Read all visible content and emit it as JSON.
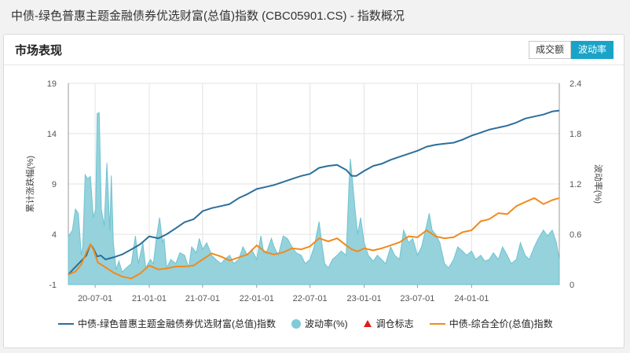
{
  "page": {
    "title": "中债-绿色普惠主题金融债券优选财富(总值)指数 (CBC05901.CS) - 指数概况"
  },
  "panel": {
    "title": "市场表现"
  },
  "tabs": [
    {
      "label": "成交额",
      "active": false
    },
    {
      "label": "波动率",
      "active": true
    }
  ],
  "colors": {
    "wealth_index": "#2b6f9a",
    "volatility_fill": "#8fd0da",
    "volatility_dot": "#7fcbd8",
    "rebalance_marker": "#e21b1b",
    "composite_index": "#f28a1c",
    "active_tab": "#1aa3c7"
  },
  "legend": [
    {
      "label": "中债-绿色普惠主题金融债券优选财富(总值)指数",
      "swatch": "line",
      "color": "#2b6f9a"
    },
    {
      "label": "波动率(%)",
      "swatch": "dot",
      "color": "#7fcbd8"
    },
    {
      "label": "调仓标志",
      "swatch": "triangle",
      "color": "#e21b1b"
    },
    {
      "label": "中债-综合全价(总值)指数",
      "swatch": "line",
      "color": "#f28a1c"
    }
  ],
  "chart_data": {
    "type": "line",
    "y_left": {
      "label": "累计涨跌幅(%)",
      "ticks": [
        "19",
        "14",
        "9",
        "4",
        "-1"
      ],
      "range": [
        -1,
        19
      ]
    },
    "y_right": {
      "label": "波动率(%)",
      "ticks": [
        "2.4",
        "1.8",
        "1.2",
        "0.6",
        "0"
      ],
      "range": [
        0,
        2.4
      ]
    },
    "x_axis": {
      "range": [
        "2020-04-01",
        "2024-10-25"
      ],
      "ticks": [
        {
          "date": "2020-07-01",
          "label": "20-07-01"
        },
        {
          "date": "2021-01-01",
          "label": "21-01-01"
        },
        {
          "date": "2021-07-01",
          "label": "21-07-01"
        },
        {
          "date": "2022-01-01",
          "label": "22-01-01"
        },
        {
          "date": "2022-07-01",
          "label": "22-07-01"
        },
        {
          "date": "2023-01-01",
          "label": "23-01-01"
        },
        {
          "date": "2023-07-01",
          "label": "23-07-01"
        },
        {
          "date": "2024-01-01",
          "label": "24-01-01"
        }
      ]
    },
    "grid": true,
    "legend_position": "bottom",
    "series": [
      {
        "name": "中债-绿色普惠主题金融债券优选财富(总值)指数",
        "axis": "left",
        "points": [
          [
            "2020-04-01",
            0.0
          ],
          [
            "2020-04-20",
            0.6
          ],
          [
            "2020-05-10",
            1.2
          ],
          [
            "2020-06-01",
            1.9
          ],
          [
            "2020-06-15",
            3.0
          ],
          [
            "2020-06-25",
            2.6
          ],
          [
            "2020-07-08",
            1.8
          ],
          [
            "2020-07-20",
            1.9
          ],
          [
            "2020-08-05",
            1.5
          ],
          [
            "2020-09-01",
            1.7
          ],
          [
            "2020-10-01",
            2.0
          ],
          [
            "2020-11-01",
            2.5
          ],
          [
            "2020-12-01",
            3.0
          ],
          [
            "2021-01-01",
            3.8
          ],
          [
            "2021-02-01",
            3.6
          ],
          [
            "2021-03-01",
            4.0
          ],
          [
            "2021-04-01",
            4.6
          ],
          [
            "2021-05-01",
            5.2
          ],
          [
            "2021-06-01",
            5.5
          ],
          [
            "2021-07-01",
            6.3
          ],
          [
            "2021-08-01",
            6.6
          ],
          [
            "2021-09-01",
            6.8
          ],
          [
            "2021-10-01",
            7.0
          ],
          [
            "2021-11-01",
            7.6
          ],
          [
            "2021-12-01",
            8.0
          ],
          [
            "2022-01-01",
            8.5
          ],
          [
            "2022-02-01",
            8.7
          ],
          [
            "2022-03-01",
            8.9
          ],
          [
            "2022-04-01",
            9.2
          ],
          [
            "2022-05-01",
            9.5
          ],
          [
            "2022-06-01",
            9.8
          ],
          [
            "2022-07-01",
            10.0
          ],
          [
            "2022-08-01",
            10.6
          ],
          [
            "2022-09-01",
            10.8
          ],
          [
            "2022-10-01",
            10.9
          ],
          [
            "2022-11-01",
            10.4
          ],
          [
            "2022-11-20",
            9.8
          ],
          [
            "2022-12-05",
            9.8
          ],
          [
            "2023-01-01",
            10.3
          ],
          [
            "2023-02-01",
            10.8
          ],
          [
            "2023-03-01",
            11.0
          ],
          [
            "2023-04-01",
            11.4
          ],
          [
            "2023-05-01",
            11.7
          ],
          [
            "2023-06-01",
            12.0
          ],
          [
            "2023-07-01",
            12.3
          ],
          [
            "2023-08-01",
            12.7
          ],
          [
            "2023-09-01",
            12.9
          ],
          [
            "2023-10-01",
            13.0
          ],
          [
            "2023-11-01",
            13.1
          ],
          [
            "2023-12-01",
            13.4
          ],
          [
            "2024-01-01",
            13.8
          ],
          [
            "2024-02-01",
            14.1
          ],
          [
            "2024-03-01",
            14.4
          ],
          [
            "2024-04-01",
            14.6
          ],
          [
            "2024-05-01",
            14.8
          ],
          [
            "2024-06-01",
            15.1
          ],
          [
            "2024-07-01",
            15.5
          ],
          [
            "2024-08-01",
            15.7
          ],
          [
            "2024-09-01",
            15.9
          ],
          [
            "2024-10-01",
            16.2
          ],
          [
            "2024-10-25",
            16.3
          ]
        ]
      },
      {
        "name": "中债-综合全价(总值)指数",
        "axis": "left",
        "points": [
          [
            "2020-04-01",
            0.0
          ],
          [
            "2020-04-25",
            0.3
          ],
          [
            "2020-05-15",
            1.0
          ],
          [
            "2020-06-01",
            2.2
          ],
          [
            "2020-06-15",
            3.0
          ],
          [
            "2020-06-25",
            2.5
          ],
          [
            "2020-07-10",
            1.2
          ],
          [
            "2020-08-01",
            0.8
          ],
          [
            "2020-09-01",
            0.2
          ],
          [
            "2020-10-01",
            -0.2
          ],
          [
            "2020-11-01",
            -0.4
          ],
          [
            "2020-12-01",
            0.1
          ],
          [
            "2021-01-01",
            0.9
          ],
          [
            "2021-02-01",
            0.5
          ],
          [
            "2021-03-01",
            0.6
          ],
          [
            "2021-04-01",
            0.8
          ],
          [
            "2021-05-01",
            0.8
          ],
          [
            "2021-06-01",
            0.9
          ],
          [
            "2021-07-01",
            1.5
          ],
          [
            "2021-08-01",
            2.1
          ],
          [
            "2021-09-01",
            1.8
          ],
          [
            "2021-10-01",
            1.4
          ],
          [
            "2021-11-01",
            1.7
          ],
          [
            "2021-12-01",
            2.0
          ],
          [
            "2022-01-01",
            2.9
          ],
          [
            "2022-02-01",
            2.2
          ],
          [
            "2022-03-01",
            2.0
          ],
          [
            "2022-04-01",
            2.2
          ],
          [
            "2022-05-01",
            2.6
          ],
          [
            "2022-06-01",
            2.5
          ],
          [
            "2022-07-01",
            2.8
          ],
          [
            "2022-08-01",
            3.6
          ],
          [
            "2022-09-01",
            3.3
          ],
          [
            "2022-10-01",
            3.6
          ],
          [
            "2022-11-01",
            2.9
          ],
          [
            "2022-11-20",
            2.5
          ],
          [
            "2022-12-10",
            2.3
          ],
          [
            "2023-01-01",
            2.6
          ],
          [
            "2023-02-01",
            2.4
          ],
          [
            "2023-03-01",
            2.6
          ],
          [
            "2023-04-01",
            2.9
          ],
          [
            "2023-05-01",
            3.2
          ],
          [
            "2023-06-01",
            3.8
          ],
          [
            "2023-07-01",
            3.7
          ],
          [
            "2023-08-01",
            4.4
          ],
          [
            "2023-09-01",
            3.8
          ],
          [
            "2023-10-01",
            3.6
          ],
          [
            "2023-11-01",
            3.7
          ],
          [
            "2023-12-01",
            4.2
          ],
          [
            "2024-01-01",
            4.4
          ],
          [
            "2024-02-01",
            5.3
          ],
          [
            "2024-03-01",
            5.5
          ],
          [
            "2024-04-01",
            6.1
          ],
          [
            "2024-05-01",
            6.0
          ],
          [
            "2024-06-01",
            6.8
          ],
          [
            "2024-07-01",
            7.2
          ],
          [
            "2024-08-01",
            7.6
          ],
          [
            "2024-09-01",
            7.0
          ],
          [
            "2024-10-01",
            7.4
          ],
          [
            "2024-10-25",
            7.6
          ]
        ]
      },
      {
        "name": "波动率(%)",
        "axis": "right",
        "type": "area",
        "points": [
          [
            "2020-04-01",
            0.57
          ],
          [
            "2020-04-15",
            0.65
          ],
          [
            "2020-04-25",
            0.9
          ],
          [
            "2020-05-05",
            0.85
          ],
          [
            "2020-05-15",
            0.35
          ],
          [
            "2020-05-20",
            0.45
          ],
          [
            "2020-05-28",
            1.31
          ],
          [
            "2020-06-05",
            1.26
          ],
          [
            "2020-06-15",
            1.29
          ],
          [
            "2020-06-25",
            0.8
          ],
          [
            "2020-07-03",
            0.9
          ],
          [
            "2020-07-08",
            2.04
          ],
          [
            "2020-07-15",
            2.05
          ],
          [
            "2020-07-22",
            0.9
          ],
          [
            "2020-08-01",
            0.7
          ],
          [
            "2020-08-10",
            1.45
          ],
          [
            "2020-08-20",
            0.65
          ],
          [
            "2020-08-25",
            1.3
          ],
          [
            "2020-09-01",
            0.5
          ],
          [
            "2020-09-10",
            0.18
          ],
          [
            "2020-09-20",
            0.28
          ],
          [
            "2020-10-01",
            0.15
          ],
          [
            "2020-10-15",
            0.2
          ],
          [
            "2020-11-01",
            0.25
          ],
          [
            "2020-11-15",
            0.58
          ],
          [
            "2020-11-25",
            0.25
          ],
          [
            "2020-12-10",
            0.5
          ],
          [
            "2020-12-20",
            0.2
          ],
          [
            "2021-01-05",
            0.3
          ],
          [
            "2021-01-15",
            0.25
          ],
          [
            "2021-01-25",
            0.55
          ],
          [
            "2021-02-05",
            0.8
          ],
          [
            "2021-02-15",
            0.5
          ],
          [
            "2021-02-20",
            0.55
          ],
          [
            "2021-03-01",
            0.2
          ],
          [
            "2021-03-15",
            0.3
          ],
          [
            "2021-04-01",
            0.25
          ],
          [
            "2021-04-15",
            0.38
          ],
          [
            "2021-05-01",
            0.35
          ],
          [
            "2021-05-15",
            0.2
          ],
          [
            "2021-05-25",
            0.45
          ],
          [
            "2021-06-10",
            0.38
          ],
          [
            "2021-06-20",
            0.55
          ],
          [
            "2021-07-01",
            0.42
          ],
          [
            "2021-07-15",
            0.5
          ],
          [
            "2021-08-01",
            0.35
          ],
          [
            "2021-08-15",
            0.3
          ],
          [
            "2021-09-01",
            0.25
          ],
          [
            "2021-09-15",
            0.3
          ],
          [
            "2021-10-01",
            0.35
          ],
          [
            "2021-10-15",
            0.25
          ],
          [
            "2021-11-01",
            0.3
          ],
          [
            "2021-11-15",
            0.45
          ],
          [
            "2021-12-01",
            0.35
          ],
          [
            "2021-12-15",
            0.42
          ],
          [
            "2022-01-01",
            0.3
          ],
          [
            "2022-01-15",
            0.58
          ],
          [
            "2022-01-25",
            0.38
          ],
          [
            "2022-02-05",
            0.4
          ],
          [
            "2022-02-20",
            0.55
          ],
          [
            "2022-03-01",
            0.45
          ],
          [
            "2022-03-15",
            0.35
          ],
          [
            "2022-04-01",
            0.58
          ],
          [
            "2022-04-15",
            0.55
          ],
          [
            "2022-05-01",
            0.45
          ],
          [
            "2022-05-15",
            0.38
          ],
          [
            "2022-06-01",
            0.35
          ],
          [
            "2022-06-15",
            0.25
          ],
          [
            "2022-07-01",
            0.3
          ],
          [
            "2022-07-15",
            0.45
          ],
          [
            "2022-08-01",
            0.75
          ],
          [
            "2022-08-10",
            0.5
          ],
          [
            "2022-08-20",
            0.25
          ],
          [
            "2022-09-01",
            0.2
          ],
          [
            "2022-09-15",
            0.3
          ],
          [
            "2022-10-01",
            0.35
          ],
          [
            "2022-10-15",
            0.4
          ],
          [
            "2022-11-01",
            0.35
          ],
          [
            "2022-11-10",
            1.15
          ],
          [
            "2022-11-15",
            1.5
          ],
          [
            "2022-11-22",
            1.25
          ],
          [
            "2022-12-01",
            0.9
          ],
          [
            "2022-12-10",
            0.6
          ],
          [
            "2022-12-20",
            0.8
          ],
          [
            "2023-01-01",
            0.5
          ],
          [
            "2023-01-15",
            0.35
          ],
          [
            "2023-02-01",
            0.28
          ],
          [
            "2023-02-15",
            0.35
          ],
          [
            "2023-03-01",
            0.3
          ],
          [
            "2023-03-15",
            0.25
          ],
          [
            "2023-04-01",
            0.45
          ],
          [
            "2023-04-15",
            0.35
          ],
          [
            "2023-05-01",
            0.3
          ],
          [
            "2023-05-15",
            0.65
          ],
          [
            "2023-06-01",
            0.5
          ],
          [
            "2023-06-15",
            0.55
          ],
          [
            "2023-07-01",
            0.35
          ],
          [
            "2023-07-15",
            0.45
          ],
          [
            "2023-08-01",
            0.7
          ],
          [
            "2023-08-10",
            0.85
          ],
          [
            "2023-08-20",
            0.65
          ],
          [
            "2023-09-01",
            0.6
          ],
          [
            "2023-09-15",
            0.5
          ],
          [
            "2023-10-01",
            0.25
          ],
          [
            "2023-10-15",
            0.2
          ],
          [
            "2023-11-01",
            0.3
          ],
          [
            "2023-11-15",
            0.45
          ],
          [
            "2023-12-01",
            0.4
          ],
          [
            "2023-12-15",
            0.35
          ],
          [
            "2024-01-01",
            0.4
          ],
          [
            "2024-01-15",
            0.3
          ],
          [
            "2024-02-01",
            0.35
          ],
          [
            "2024-02-15",
            0.28
          ],
          [
            "2024-03-01",
            0.3
          ],
          [
            "2024-03-15",
            0.38
          ],
          [
            "2024-04-01",
            0.3
          ],
          [
            "2024-04-15",
            0.45
          ],
          [
            "2024-05-01",
            0.35
          ],
          [
            "2024-05-15",
            0.25
          ],
          [
            "2024-06-01",
            0.3
          ],
          [
            "2024-06-15",
            0.5
          ],
          [
            "2024-07-01",
            0.35
          ],
          [
            "2024-07-15",
            0.3
          ],
          [
            "2024-08-01",
            0.45
          ],
          [
            "2024-08-15",
            0.55
          ],
          [
            "2024-09-01",
            0.65
          ],
          [
            "2024-09-15",
            0.58
          ],
          [
            "2024-10-01",
            0.65
          ],
          [
            "2024-10-15",
            0.5
          ],
          [
            "2024-10-25",
            0.3
          ]
        ]
      }
    ]
  }
}
